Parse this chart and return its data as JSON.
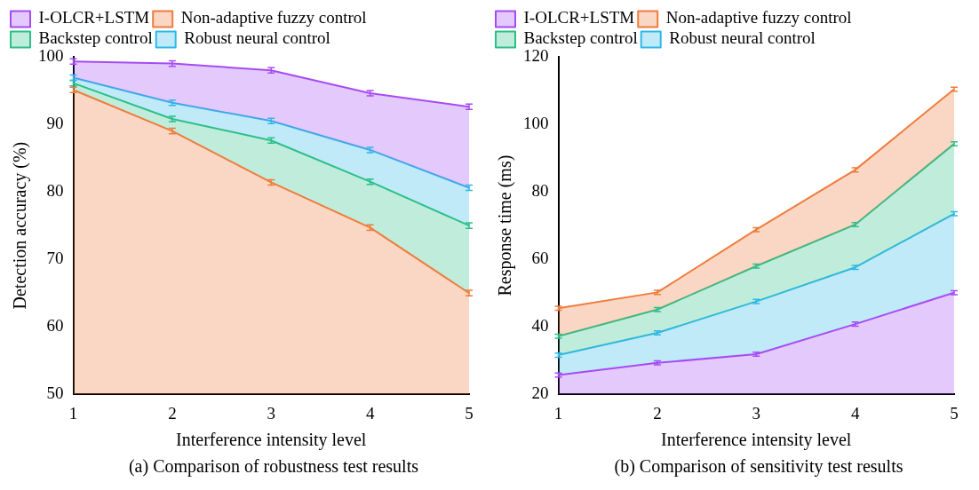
{
  "chart_data": [
    {
      "type": "area",
      "x": [
        1,
        2,
        3,
        4,
        5
      ],
      "xlim": [
        1,
        5
      ],
      "xticks": [
        1,
        2,
        3,
        4,
        5
      ],
      "ylim": [
        50,
        100
      ],
      "yticks": [
        50,
        60,
        70,
        80,
        90,
        100
      ],
      "xlabel": "Interference intensity level",
      "ylabel": "Detection accuracy (%)",
      "legend": "top left",
      "grid": false,
      "annotations": [
        "(a) Comparison of robustness test results"
      ],
      "series": [
        {
          "name": "I-OLCR+LSTM",
          "color": "#a64bf4",
          "values": [
            99.3,
            99.0,
            98.0,
            94.6,
            92.6
          ],
          "errors": [
            0.4,
            0.4,
            0.4,
            0.4,
            0.4
          ]
        },
        {
          "name": "Non-adaptive fuzzy control",
          "color": "#f07c3c",
          "values": [
            95.1,
            89.0,
            81.4,
            74.7,
            65.0
          ],
          "errors": [
            0.4,
            0.4,
            0.4,
            0.4,
            0.4
          ]
        },
        {
          "name": "Backstep control",
          "color": "#2dbf8a",
          "values": [
            96.1,
            90.8,
            87.6,
            81.5,
            75.0
          ],
          "errors": [
            0.4,
            0.4,
            0.4,
            0.4,
            0.4
          ]
        },
        {
          "name": "Robust neural control",
          "color": "#2fb8e8",
          "values": [
            96.9,
            93.2,
            90.5,
            86.2,
            80.6
          ],
          "errors": [
            0.4,
            0.4,
            0.4,
            0.4,
            0.4
          ]
        }
      ]
    },
    {
      "type": "area",
      "x": [
        1,
        2,
        3,
        4,
        5
      ],
      "xlim": [
        1,
        5
      ],
      "xticks": [
        1,
        2,
        3,
        4,
        5
      ],
      "ylim": [
        20,
        120
      ],
      "yticks": [
        20,
        40,
        60,
        80,
        100,
        120
      ],
      "xlabel": "Interference intensity level",
      "ylabel": "Response time (ms)",
      "legend": "top left",
      "grid": false,
      "annotations": [
        "(b) Comparison of sensitivity test results"
      ],
      "series": [
        {
          "name": "I-OLCR+LSTM",
          "color": "#a64bf4",
          "values": [
            25.7,
            29.3,
            31.9,
            40.8,
            50.1
          ],
          "errors": [
            0.6,
            0.6,
            0.6,
            0.6,
            0.6
          ]
        },
        {
          "name": "Non-adaptive fuzzy control",
          "color": "#f07c3c",
          "values": [
            45.5,
            50.2,
            68.8,
            86.5,
            110.4
          ],
          "errors": [
            0.6,
            0.6,
            0.6,
            0.6,
            0.6
          ]
        },
        {
          "name": "Backstep control",
          "color": "#2dbf8a",
          "values": [
            37.2,
            45.1,
            58.0,
            70.3,
            94.2
          ],
          "errors": [
            0.6,
            0.6,
            0.6,
            0.6,
            0.6
          ]
        },
        {
          "name": "Robust neural control",
          "color": "#2fb8e8",
          "values": [
            31.6,
            38.2,
            47.5,
            57.6,
            73.5
          ],
          "errors": [
            0.6,
            0.6,
            0.6,
            0.6,
            0.6
          ]
        }
      ]
    }
  ]
}
